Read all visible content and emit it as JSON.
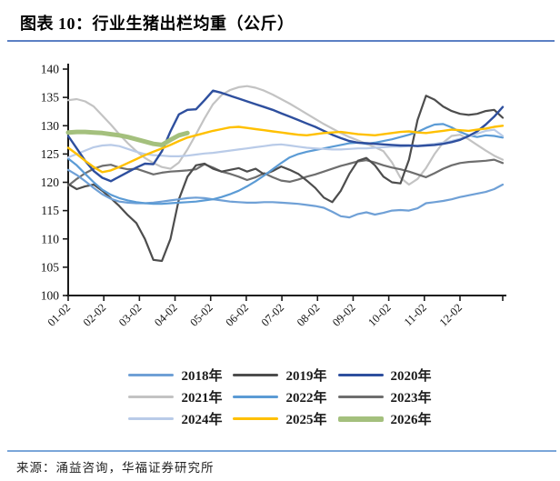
{
  "title": "图表 10：行业生猪出栏均重（公斤）",
  "source": "来源：涌益咨询，华福证券研究所",
  "chart_data": {
    "type": "line",
    "title": "行业生猪出栏均重（公斤）",
    "ylim": [
      100,
      140
    ],
    "yticks": [
      100,
      105,
      110,
      115,
      120,
      125,
      130,
      135,
      140
    ],
    "x_tick_labels": [
      "01-02",
      "02-02",
      "03-02",
      "04-02",
      "05-02",
      "06-02",
      "07-02",
      "08-02",
      "09-02",
      "10-02",
      "11-02",
      "12-02"
    ],
    "x_unit": "weekly (Jan–Dec)",
    "grid": false,
    "legend_position": "bottom",
    "axis_color": "#1a1a1a",
    "series": [
      {
        "name": "2018年",
        "color": "#6fa0d6",
        "width": 2.2,
        "values": [
          122.2,
          121.3,
          120.2,
          119.0,
          117.9,
          117.1,
          116.6,
          116.4,
          116.3,
          116.3,
          116.4,
          116.6,
          116.8,
          117.0,
          117.2,
          117.3,
          117.2,
          117.0,
          116.8,
          116.6,
          116.5,
          116.4,
          116.4,
          116.5,
          116.5,
          116.4,
          116.3,
          116.2,
          116.0,
          115.8,
          115.5,
          114.8,
          114.0,
          113.8,
          114.4,
          114.7,
          114.3,
          114.6,
          115.0,
          115.1,
          115.0,
          115.4,
          116.3,
          116.5,
          116.7,
          117.0,
          117.4,
          117.7,
          118.0,
          118.3,
          118.8,
          119.6
        ]
      },
      {
        "name": "2019年",
        "color": "#4d4d4d",
        "width": 2.2,
        "values": [
          119.7,
          118.8,
          119.3,
          119.6,
          118.5,
          117.2,
          115.8,
          114.2,
          112.8,
          110.0,
          106.3,
          106.1,
          110.0,
          117.0,
          121.0,
          123.0,
          123.3,
          122.4,
          121.9,
          122.2,
          122.5,
          121.9,
          122.4,
          121.4,
          122.0,
          122.8,
          122.2,
          121.5,
          120.3,
          119.0,
          117.3,
          116.5,
          118.5,
          121.5,
          123.8,
          124.3,
          123.0,
          121.0,
          120.0,
          119.8,
          124.0,
          131.0,
          135.3,
          134.6,
          133.4,
          132.6,
          132.1,
          131.9,
          132.1,
          132.6,
          132.8,
          131.4
        ]
      },
      {
        "name": "2020年",
        "color": "#2e4f9e",
        "width": 2.4,
        "values": [
          128.2,
          126.0,
          123.8,
          122.0,
          120.8,
          120.2,
          121.0,
          121.8,
          122.6,
          123.3,
          123.2,
          125.5,
          129.0,
          132.0,
          132.8,
          132.9,
          134.5,
          136.2,
          135.8,
          135.3,
          134.8,
          134.3,
          133.8,
          133.3,
          132.8,
          132.2,
          131.6,
          131.0,
          130.4,
          129.8,
          129.1,
          128.4,
          127.8,
          127.3,
          127.0,
          126.9,
          126.8,
          126.7,
          126.6,
          126.5,
          126.5,
          126.4,
          126.5,
          126.6,
          126.8,
          127.1,
          127.5,
          128.2,
          129.0,
          130.2,
          131.6,
          133.3
        ]
      },
      {
        "name": "2021年",
        "color": "#c3c3c3",
        "width": 2.2,
        "values": [
          134.5,
          134.7,
          134.3,
          133.4,
          131.8,
          130.2,
          128.5,
          126.9,
          125.5,
          124.3,
          123.4,
          122.7,
          122.4,
          123.5,
          125.8,
          128.5,
          131.3,
          133.8,
          135.4,
          136.3,
          136.8,
          137.0,
          136.7,
          136.2,
          135.5,
          134.7,
          133.9,
          133.0,
          132.1,
          131.2,
          130.3,
          129.5,
          128.7,
          128.0,
          127.4,
          126.8,
          126.2,
          125.5,
          123.5,
          120.8,
          119.6,
          120.6,
          122.5,
          125.0,
          127.0,
          128.2,
          128.4,
          127.6,
          126.6,
          125.6,
          124.7,
          124.0
        ]
      },
      {
        "name": "2022年",
        "color": "#5b9bd5",
        "width": 2.2,
        "values": [
          124.2,
          123.0,
          121.5,
          120.0,
          118.7,
          117.8,
          117.2,
          116.8,
          116.5,
          116.3,
          116.2,
          116.2,
          116.3,
          116.4,
          116.5,
          116.6,
          116.8,
          117.0,
          117.4,
          117.9,
          118.5,
          119.3,
          120.2,
          121.2,
          122.3,
          123.4,
          124.4,
          125.0,
          125.4,
          125.7,
          126.0,
          126.3,
          126.6,
          126.9,
          127.0,
          126.8,
          127.0,
          127.3,
          127.6,
          128.0,
          128.4,
          128.9,
          129.6,
          130.2,
          130.3,
          129.7,
          128.9,
          128.3,
          128.0,
          128.3,
          128.2,
          127.9
        ]
      },
      {
        "name": "2023年",
        "color": "#6e6e6e",
        "width": 2.2,
        "values": [
          119.4,
          120.6,
          121.6,
          122.4,
          122.9,
          123.1,
          122.6,
          122.3,
          122.4,
          121.9,
          121.4,
          121.7,
          121.9,
          122.0,
          122.1,
          122.3,
          123.2,
          122.6,
          121.9,
          121.5,
          121.0,
          120.4,
          120.9,
          121.6,
          120.9,
          120.3,
          120.1,
          120.5,
          121.0,
          121.4,
          121.9,
          122.4,
          122.9,
          123.3,
          123.7,
          123.9,
          123.5,
          123.0,
          122.6,
          122.3,
          121.9,
          121.4,
          120.9,
          121.6,
          122.4,
          123.0,
          123.4,
          123.6,
          123.7,
          123.8,
          124.0,
          123.4
        ]
      },
      {
        "name": "2024年",
        "color": "#b9cbe8",
        "width": 2.2,
        "values": [
          124.4,
          125.0,
          125.6,
          126.2,
          126.5,
          126.6,
          126.4,
          125.9,
          125.4,
          125.0,
          124.8,
          124.7,
          124.6,
          124.6,
          124.7,
          124.9,
          125.1,
          125.2,
          125.4,
          125.6,
          125.8,
          126.0,
          126.2,
          126.4,
          126.6,
          126.7,
          126.5,
          126.3,
          126.1,
          126.0,
          125.9,
          125.8,
          125.8,
          125.9,
          126.0,
          126.0,
          126.1,
          126.2,
          126.3,
          126.3,
          126.4,
          126.5,
          126.6,
          126.8,
          127.0,
          127.3,
          127.7,
          128.1,
          128.6,
          129.1,
          129.3,
          128.2
        ]
      },
      {
        "name": "2025年",
        "color": "#ffc000",
        "width": 2.4,
        "values": [
          126.1,
          125.0,
          123.8,
          122.7,
          121.8,
          122.1,
          122.7,
          123.4,
          124.1,
          124.8,
          125.4,
          126.0,
          126.6,
          127.3,
          127.9,
          128.3,
          128.7,
          129.1,
          129.4,
          129.7,
          129.8,
          129.6,
          129.4,
          129.2,
          129.0,
          128.8,
          128.6,
          128.4,
          128.3,
          128.5,
          128.7,
          128.8,
          128.9,
          128.7,
          128.5,
          128.4,
          128.3,
          128.5,
          128.7,
          128.9,
          129.0,
          128.8,
          128.7,
          128.9,
          129.1,
          129.3,
          129.2,
          129.1,
          129.3,
          129.5,
          129.8,
          130.0
        ]
      },
      {
        "name": "2026年",
        "color": "#a4c07d",
        "width": 5,
        "values": [
          128.8,
          128.9,
          128.9,
          128.8,
          128.7,
          128.5,
          128.3,
          128.0,
          127.6,
          127.2,
          126.8,
          126.6,
          127.5,
          128.3,
          128.7
        ]
      }
    ]
  }
}
